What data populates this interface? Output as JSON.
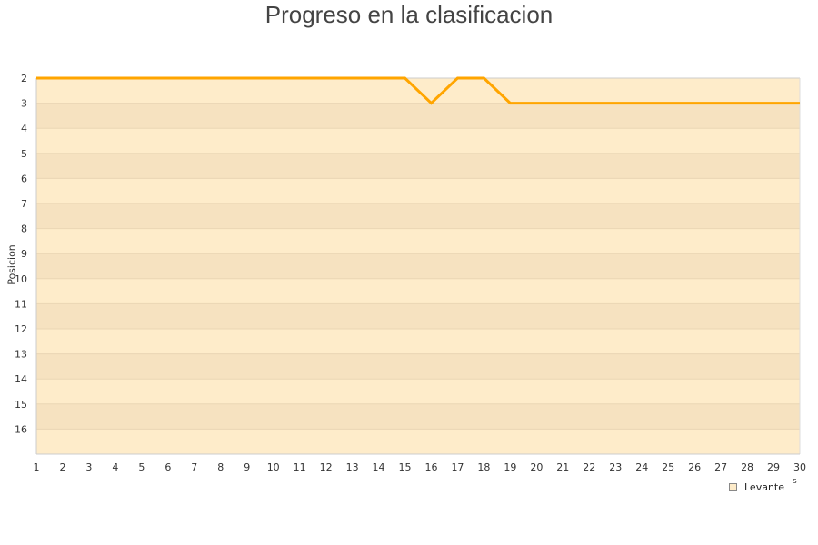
{
  "chart_data": {
    "type": "line",
    "title": "Progreso en la clasificacion",
    "ylabel": "Posicion",
    "xlabel_fragment": "s",
    "x": [
      1,
      2,
      3,
      4,
      5,
      6,
      7,
      8,
      9,
      10,
      11,
      12,
      13,
      14,
      15,
      16,
      17,
      18,
      19,
      20,
      21,
      22,
      23,
      24,
      25,
      26,
      27,
      28,
      29,
      30
    ],
    "series": [
      {
        "name": "Levante",
        "color": "#ffa500",
        "values": [
          2,
          2,
          2,
          2,
          2,
          2,
          2,
          2,
          2,
          2,
          2,
          2,
          2,
          2,
          2,
          3,
          2,
          2,
          3,
          3,
          3,
          3,
          3,
          3,
          3,
          3,
          3,
          3,
          3,
          3
        ]
      }
    ],
    "xlim": [
      1,
      30
    ],
    "ylim": [
      2,
      17
    ],
    "y_inverted": true,
    "y_ticks": [
      2,
      3,
      4,
      5,
      6,
      7,
      8,
      9,
      10,
      11,
      12,
      13,
      14,
      15,
      16
    ],
    "legend_position": "bottom-right",
    "band_colors": [
      "#feecca",
      "#f6e2c0"
    ]
  }
}
